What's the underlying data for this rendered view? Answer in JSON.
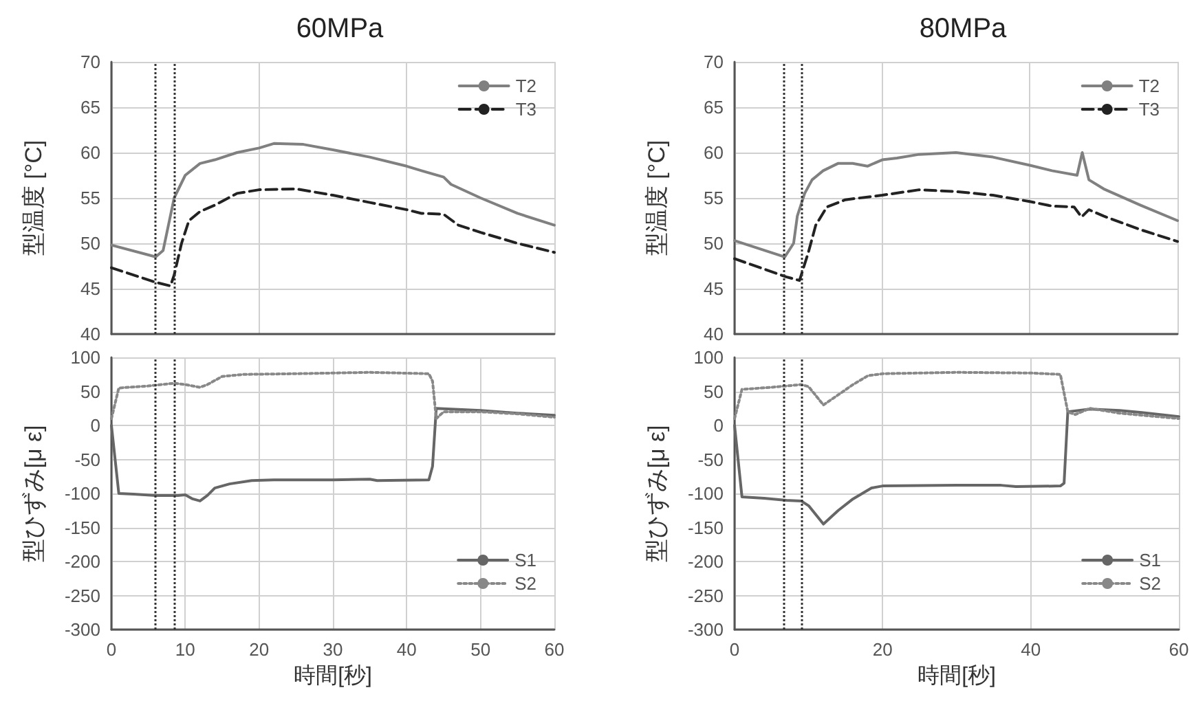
{
  "chart_data": [
    {
      "type": "line",
      "title": "60MPa",
      "ylabel": "型温度 [°C]",
      "xlim": [
        0,
        60
      ],
      "xticks": [
        0,
        20,
        40,
        60
      ],
      "ylim": [
        40,
        70
      ],
      "yticks": [
        40,
        45,
        50,
        55,
        60,
        65,
        70
      ],
      "tick_labels": "y",
      "grid": true,
      "legend": "top right",
      "marker": "none",
      "ref_lines": [
        {
          "axis": "x",
          "value": 5.9,
          "color": "#333333",
          "line_style": "dotted"
        },
        {
          "axis": "x",
          "value": 8.5,
          "color": "#333333",
          "line_style": "dotted"
        }
      ],
      "series": [
        {
          "name": "T2",
          "color": "#808080",
          "line_style": "solid",
          "x": [
            0,
            6,
            7,
            8.5,
            10,
            12,
            14,
            17,
            20,
            22,
            26,
            30,
            35,
            40,
            42,
            45,
            46,
            50,
            55,
            60
          ],
          "values": [
            49.8,
            48.5,
            49.2,
            55,
            57.5,
            58.8,
            59.2,
            60,
            60.5,
            61,
            60.9,
            60.3,
            59.5,
            58.5,
            58,
            57.3,
            56.5,
            55,
            53.3,
            52
          ]
        },
        {
          "name": "T3",
          "color": "#222222",
          "line_style": "dashed",
          "x": [
            0,
            6,
            8,
            8.5,
            9.5,
            10.5,
            12,
            14,
            17,
            20,
            25,
            30,
            35,
            40,
            42,
            45,
            47,
            50,
            55,
            60
          ],
          "values": [
            47.3,
            45.7,
            45.3,
            46.5,
            50,
            52.5,
            53.5,
            54.2,
            55.5,
            55.9,
            56,
            55.3,
            54.5,
            53.7,
            53.3,
            53.2,
            52,
            51.2,
            50,
            49
          ]
        }
      ]
    },
    {
      "type": "line",
      "title": "80MPa",
      "ylabel": "型温度 [°C]",
      "xlim": [
        0,
        60
      ],
      "xticks": [
        0,
        20,
        40,
        60
      ],
      "ylim": [
        40,
        70
      ],
      "yticks": [
        40,
        45,
        50,
        55,
        60,
        65,
        70
      ],
      "tick_labels": "y",
      "grid": true,
      "legend": "top right",
      "marker": "none",
      "ref_lines": [
        {
          "axis": "x",
          "value": 6.7,
          "color": "#333333",
          "line_style": "dotted"
        },
        {
          "axis": "x",
          "value": 9.1,
          "color": "#333333",
          "line_style": "dotted"
        }
      ],
      "series": [
        {
          "name": "T2",
          "color": "#808080",
          "line_style": "solid",
          "x": [
            0,
            6.8,
            8,
            8.5,
            9.5,
            10.5,
            12,
            14,
            16,
            18,
            20,
            22,
            25,
            30,
            35,
            40,
            43,
            46.4,
            47.1,
            48,
            50,
            55,
            60
          ],
          "values": [
            50.3,
            48.5,
            50,
            53,
            55.5,
            57,
            58,
            58.8,
            58.8,
            58.5,
            59.2,
            59.4,
            59.8,
            60,
            59.5,
            58.6,
            58,
            57.5,
            60,
            57,
            56,
            54.2,
            52.5
          ]
        },
        {
          "name": "T3",
          "color": "#222222",
          "line_style": "dashed",
          "x": [
            0,
            7,
            8.8,
            10,
            11,
            12.5,
            15,
            20,
            25,
            30,
            35,
            40,
            43,
            46,
            47,
            48,
            50,
            55,
            60
          ],
          "values": [
            48.3,
            46.3,
            45.9,
            49,
            52,
            54,
            54.8,
            55.3,
            55.9,
            55.7,
            55.3,
            54.6,
            54.1,
            54,
            52.9,
            53.7,
            53,
            51.5,
            50.2
          ]
        }
      ]
    },
    {
      "type": "line",
      "xlabel": "時間[秒]",
      "ylabel": "型ひずみ[μ ε]",
      "xlim": [
        0,
        60
      ],
      "xticks": [
        0,
        10,
        20,
        30,
        40,
        50,
        60
      ],
      "ylim": [
        -300,
        100
      ],
      "yticks": [
        -300,
        -250,
        -200,
        -150,
        -100,
        -50,
        0,
        50,
        100
      ],
      "grid": true,
      "legend": "bottom right",
      "marker": "none",
      "ref_lines": [
        {
          "axis": "x",
          "value": 5.9,
          "color": "#333333",
          "line_style": "dotted"
        },
        {
          "axis": "x",
          "value": 8.5,
          "color": "#333333",
          "line_style": "dotted"
        }
      ],
      "series": [
        {
          "name": "S1",
          "color": "#666666",
          "line_style": "solid",
          "x": [
            0,
            1,
            3,
            6,
            9,
            10,
            11,
            12,
            13,
            14,
            16,
            19,
            22,
            30,
            35,
            36,
            43,
            43.5,
            44,
            50,
            55,
            60
          ],
          "values": [
            0,
            -100,
            -101,
            -103,
            -103,
            -102,
            -108,
            -111,
            -103,
            -92,
            -86,
            -81,
            -80,
            -80,
            -79,
            -81,
            -80,
            -60,
            25,
            22,
            18,
            15
          ]
        },
        {
          "name": "S2",
          "color": "#888888",
          "line_style": "dotted",
          "x": [
            0,
            1,
            5,
            8.5,
            10,
            12,
            13,
            15,
            18,
            25,
            35,
            43,
            43.5,
            44,
            45,
            50,
            55,
            60
          ],
          "values": [
            10,
            55,
            58,
            62,
            60,
            56,
            60,
            72,
            75,
            76,
            78,
            76,
            65,
            10,
            20,
            20,
            17,
            12
          ]
        }
      ]
    },
    {
      "type": "line",
      "xlabel": "時間[秒]",
      "ylabel": "型ひずみ[μ ε]",
      "xlim": [
        0,
        60
      ],
      "xticks": [
        0,
        20,
        40,
        60
      ],
      "ylim": [
        -300,
        100
      ],
      "yticks": [
        -300,
        -250,
        -200,
        -150,
        -100,
        -50,
        0,
        50,
        100
      ],
      "grid": true,
      "legend": "bottom right",
      "marker": "none",
      "ref_lines": [
        {
          "axis": "x",
          "value": 6.7,
          "color": "#333333",
          "line_style": "dotted"
        },
        {
          "axis": "x",
          "value": 9.1,
          "color": "#333333",
          "line_style": "dotted"
        }
      ],
      "series": [
        {
          "name": "S1",
          "color": "#666666",
          "line_style": "solid",
          "x": [
            0,
            1,
            4,
            7,
            9,
            10,
            12,
            14,
            16,
            18.5,
            20,
            30,
            36,
            38,
            44,
            44.5,
            45,
            48,
            52,
            55,
            60
          ],
          "values": [
            0,
            -105,
            -107,
            -110,
            -111,
            -118,
            -145,
            -125,
            -108,
            -92,
            -89,
            -88,
            -88,
            -90,
            -89,
            -85,
            20,
            24,
            22,
            19,
            13
          ]
        },
        {
          "name": "S2",
          "color": "#888888",
          "line_style": "dotted",
          "x": [
            0,
            1,
            5,
            9,
            10,
            12,
            14,
            16,
            18,
            20,
            30,
            40,
            44,
            45,
            46,
            48,
            52,
            55,
            60
          ],
          "values": [
            10,
            53,
            56,
            60,
            57,
            30,
            45,
            60,
            73,
            76,
            78,
            77,
            75,
            20,
            16,
            25,
            18,
            15,
            10
          ]
        }
      ]
    }
  ]
}
